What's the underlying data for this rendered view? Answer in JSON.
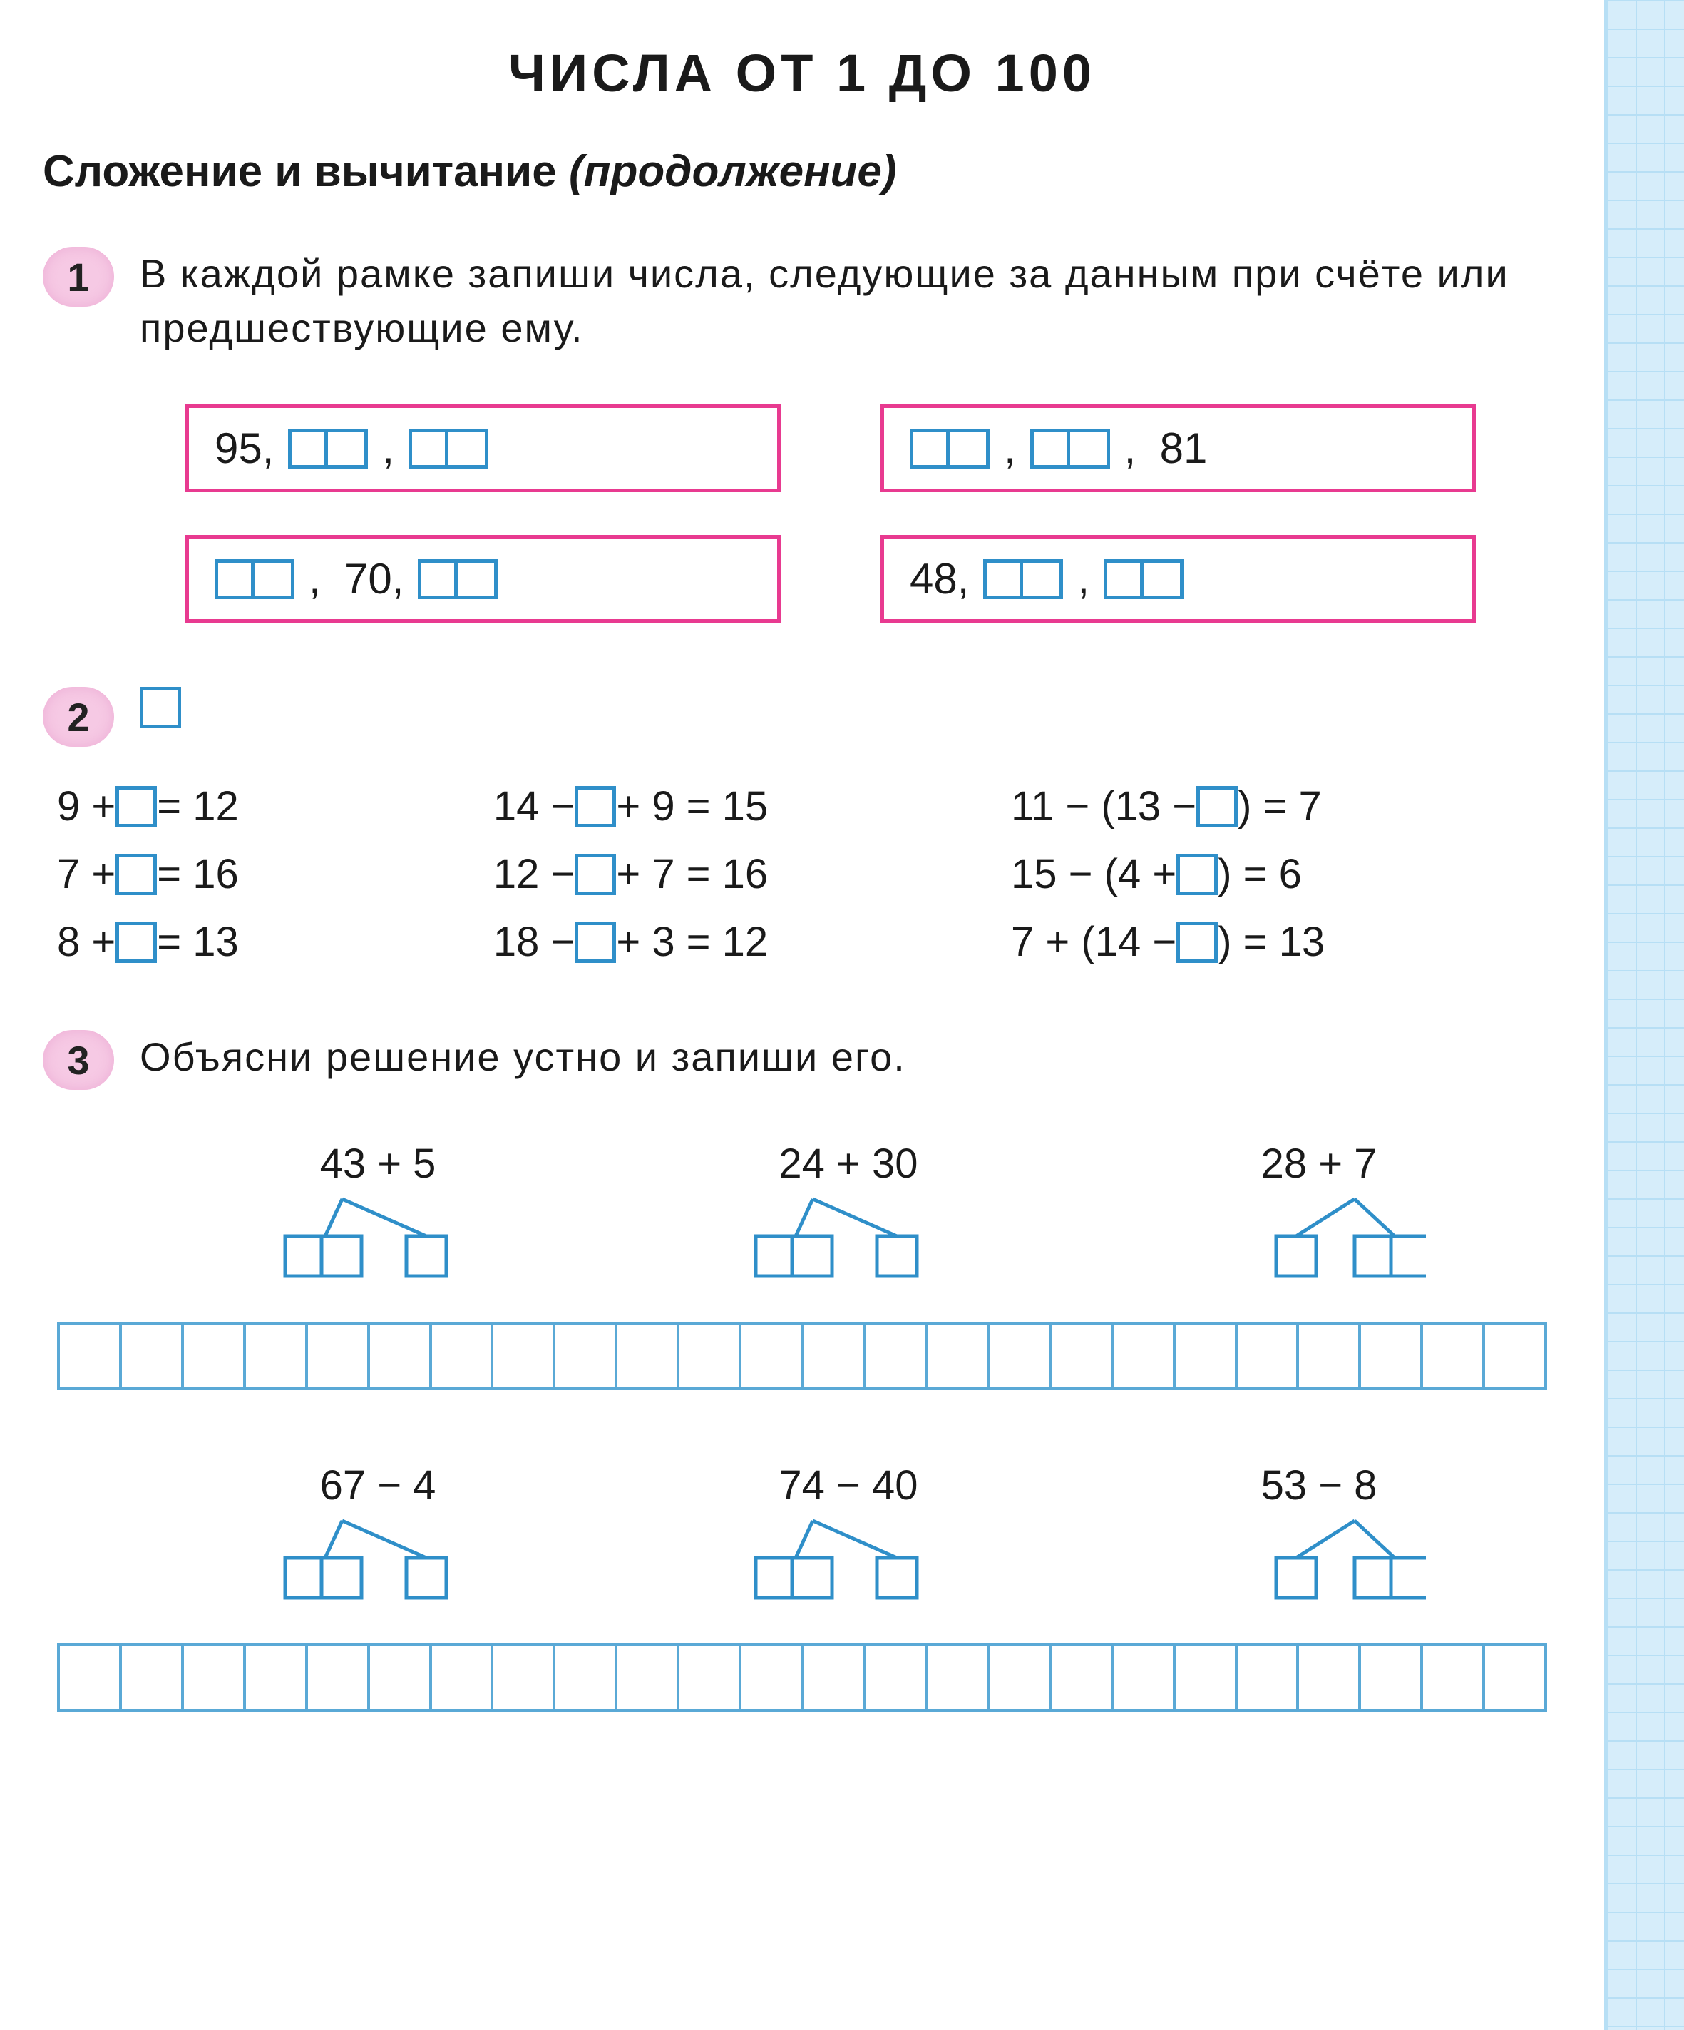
{
  "colors": {
    "pill_bg": "#f6c9e4",
    "pink_border": "#e83a90",
    "blue_border": "#2f8fc9",
    "grid_blue": "#5aa9d6",
    "side_grid": "#b7dff5",
    "side_bg": "#d6edfa",
    "text": "#1a1a1a"
  },
  "title": "ЧИСЛА  ОТ  1  ДО  100",
  "subtitle_bold": "Сложение  и  вычитание",
  "subtitle_em": "(продолжение)",
  "ex1": {
    "num": "1",
    "text": "В каждой рамке запиши числа, следующие за данным при счёте или предшествующие ему.",
    "frames": [
      {
        "items": [
          {
            "t": "text",
            "v": "95,"
          },
          {
            "t": "dbl"
          },
          {
            "t": "text",
            "v": ","
          },
          {
            "t": "dbl"
          }
        ]
      },
      {
        "items": [
          {
            "t": "dbl"
          },
          {
            "t": "text",
            "v": ","
          },
          {
            "t": "dbl"
          },
          {
            "t": "text",
            "v": ",  81"
          }
        ]
      },
      {
        "items": [
          {
            "t": "dbl"
          },
          {
            "t": "text",
            "v": ",  70,"
          },
          {
            "t": "dbl"
          }
        ]
      },
      {
        "items": [
          {
            "t": "text",
            "v": "48,"
          },
          {
            "t": "dbl"
          },
          {
            "t": "text",
            "v": ","
          },
          {
            "t": "dbl"
          }
        ]
      }
    ]
  },
  "ex2": {
    "num": "2",
    "cols": [
      [
        {
          "pre": "9 + ",
          "post": " = 12"
        },
        {
          "pre": "7 + ",
          "post": " = 16"
        },
        {
          "pre": "8 + ",
          "post": " = 13"
        }
      ],
      [
        {
          "pre": "14 − ",
          "post": " + 9 = 15"
        },
        {
          "pre": "12 − ",
          "post": " + 7 = 16"
        },
        {
          "pre": "18 − ",
          "post": " + 3 = 12"
        }
      ],
      [
        {
          "pre": "11 − (13 − ",
          "post": ") = 7"
        },
        {
          "pre": "15 − (4 + ",
          "post": ") = 6"
        },
        {
          "pre": "7 + (14 − ",
          "post": ") = 13"
        }
      ]
    ]
  },
  "ex3": {
    "num": "3",
    "text": "Объясни решение устно и запиши его.",
    "row1": [
      {
        "expr": "43 + 5",
        "shape": "left2"
      },
      {
        "expr": "24 + 30",
        "shape": "left2"
      },
      {
        "expr": "28 + 7",
        "shape": "right2"
      }
    ],
    "row2": [
      {
        "expr": "67 − 4",
        "shape": "left2"
      },
      {
        "expr": "74 − 40",
        "shape": "left2"
      },
      {
        "expr": "53 − 8",
        "shape": "right2"
      }
    ],
    "grid_cells": 24
  }
}
